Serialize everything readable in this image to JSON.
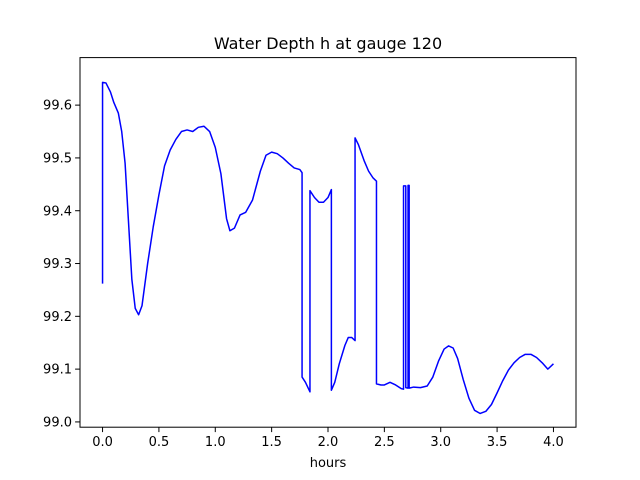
{
  "chart_data": {
    "type": "line",
    "title": "Water Depth h at gauge 120",
    "xlabel": "hours",
    "ylabel": "",
    "xlim": [
      -0.2,
      4.2
    ],
    "ylim": [
      98.99,
      99.69
    ],
    "xticks": [
      0.0,
      0.5,
      1.0,
      1.5,
      2.0,
      2.5,
      3.0,
      3.5,
      4.0
    ],
    "xtick_labels": [
      "0.0",
      "0.5",
      "1.0",
      "1.5",
      "2.0",
      "2.5",
      "3.0",
      "3.5",
      "4.0"
    ],
    "yticks": [
      99.0,
      99.1,
      99.2,
      99.3,
      99.4,
      99.5,
      99.6
    ],
    "ytick_labels": [
      "99.0",
      "99.1",
      "99.2",
      "99.3",
      "99.4",
      "99.5",
      "99.6"
    ],
    "grid": false,
    "legend": "none",
    "series": [
      {
        "color": "#0000ff",
        "points": [
          [
            0.0,
            99.262
          ],
          [
            0.0,
            99.643
          ],
          [
            0.03,
            99.642
          ],
          [
            0.07,
            99.625
          ],
          [
            0.1,
            99.605
          ],
          [
            0.14,
            99.585
          ],
          [
            0.17,
            99.55
          ],
          [
            0.2,
            99.49
          ],
          [
            0.23,
            99.38
          ],
          [
            0.26,
            99.27
          ],
          [
            0.29,
            99.215
          ],
          [
            0.32,
            99.203
          ],
          [
            0.35,
            99.22
          ],
          [
            0.4,
            99.3
          ],
          [
            0.45,
            99.37
          ],
          [
            0.5,
            99.43
          ],
          [
            0.55,
            99.485
          ],
          [
            0.6,
            99.515
          ],
          [
            0.65,
            99.535
          ],
          [
            0.7,
            99.55
          ],
          [
            0.75,
            99.553
          ],
          [
            0.8,
            99.55
          ],
          [
            0.85,
            99.558
          ],
          [
            0.9,
            99.56
          ],
          [
            0.95,
            99.55
          ],
          [
            1.0,
            99.52
          ],
          [
            1.05,
            99.47
          ],
          [
            1.1,
            99.385
          ],
          [
            1.13,
            99.362
          ],
          [
            1.17,
            99.367
          ],
          [
            1.22,
            99.392
          ],
          [
            1.27,
            99.397
          ],
          [
            1.33,
            99.42
          ],
          [
            1.4,
            99.475
          ],
          [
            1.45,
            99.505
          ],
          [
            1.5,
            99.511
          ],
          [
            1.55,
            99.508
          ],
          [
            1.6,
            99.5
          ],
          [
            1.65,
            99.49
          ],
          [
            1.7,
            99.481
          ],
          [
            1.75,
            99.478
          ],
          [
            1.77,
            99.472
          ],
          [
            1.77,
            99.085
          ],
          [
            1.8,
            99.075
          ],
          [
            1.84,
            99.057
          ],
          [
            1.84,
            99.438
          ],
          [
            1.88,
            99.425
          ],
          [
            1.92,
            99.416
          ],
          [
            1.96,
            99.416
          ],
          [
            2.0,
            99.425
          ],
          [
            2.03,
            99.44
          ],
          [
            2.03,
            99.06
          ],
          [
            2.06,
            99.075
          ],
          [
            2.1,
            99.11
          ],
          [
            2.15,
            99.145
          ],
          [
            2.18,
            99.16
          ],
          [
            2.21,
            99.16
          ],
          [
            2.24,
            99.154
          ],
          [
            2.24,
            99.538
          ],
          [
            2.27,
            99.525
          ],
          [
            2.32,
            99.495
          ],
          [
            2.36,
            99.475
          ],
          [
            2.4,
            99.462
          ],
          [
            2.43,
            99.456
          ],
          [
            2.43,
            99.072
          ],
          [
            2.47,
            99.07
          ],
          [
            2.5,
            99.07
          ],
          [
            2.55,
            99.075
          ],
          [
            2.6,
            99.07
          ],
          [
            2.65,
            99.063
          ],
          [
            2.67,
            99.062
          ],
          [
            2.67,
            99.447
          ],
          [
            2.69,
            99.447
          ],
          [
            2.69,
            99.065
          ],
          [
            2.71,
            99.064
          ],
          [
            2.71,
            99.448
          ],
          [
            2.72,
            99.448
          ],
          [
            2.72,
            99.064
          ],
          [
            2.76,
            99.066
          ],
          [
            2.82,
            99.065
          ],
          [
            2.88,
            99.068
          ],
          [
            2.93,
            99.085
          ],
          [
            2.98,
            99.115
          ],
          [
            3.03,
            99.138
          ],
          [
            3.07,
            99.144
          ],
          [
            3.11,
            99.14
          ],
          [
            3.15,
            99.12
          ],
          [
            3.2,
            99.08
          ],
          [
            3.25,
            99.045
          ],
          [
            3.3,
            99.022
          ],
          [
            3.35,
            99.016
          ],
          [
            3.4,
            99.02
          ],
          [
            3.45,
            99.033
          ],
          [
            3.5,
            99.055
          ],
          [
            3.55,
            99.078
          ],
          [
            3.6,
            99.098
          ],
          [
            3.65,
            99.112
          ],
          [
            3.7,
            99.122
          ],
          [
            3.75,
            99.128
          ],
          [
            3.8,
            99.128
          ],
          [
            3.85,
            99.122
          ],
          [
            3.9,
            99.112
          ],
          [
            3.95,
            99.1
          ],
          [
            4.0,
            99.11
          ]
        ]
      }
    ]
  }
}
